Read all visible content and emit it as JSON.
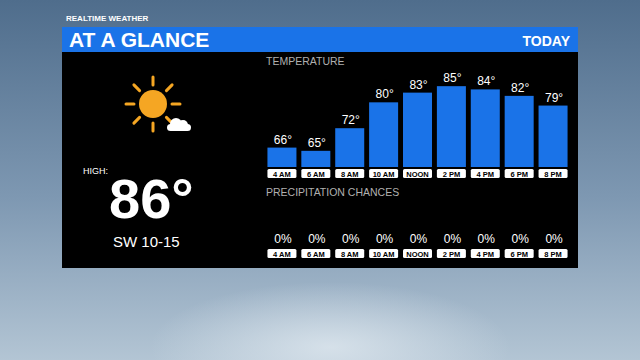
{
  "header": {
    "brand": "REALTIME WEATHER",
    "title": "AT A GLANCE",
    "period": "TODAY"
  },
  "summary": {
    "high_label": "HIGH:",
    "high": "86°",
    "wind": "SW 10-15"
  },
  "chart_data": [
    {
      "type": "bar",
      "title": "TEMPERATURE",
      "categories": [
        "4 AM",
        "6 AM",
        "8 AM",
        "10 AM",
        "NOON",
        "2 PM",
        "4 PM",
        "6 PM",
        "8 PM"
      ],
      "values": [
        66,
        65,
        72,
        80,
        83,
        85,
        84,
        82,
        79
      ],
      "value_labels": [
        "66°",
        "65°",
        "72°",
        "80°",
        "83°",
        "85°",
        "84°",
        "82°",
        "79°"
      ],
      "color": "#1a73e8",
      "ylim": [
        60,
        90
      ],
      "data_labels": true,
      "tick_labels": "x"
    },
    {
      "type": "bar",
      "title": "PRECIPITATION CHANCES",
      "categories": [
        "4 AM",
        "6 AM",
        "8 AM",
        "10 AM",
        "NOON",
        "2 PM",
        "4 PM",
        "6 PM",
        "8 PM"
      ],
      "values": [
        0,
        0,
        0,
        0,
        0,
        0,
        0,
        0,
        0
      ],
      "value_labels": [
        "0%",
        "0%",
        "0%",
        "0%",
        "0%",
        "0%",
        "0%",
        "0%",
        "0%"
      ],
      "color": "#1a73e8",
      "ylim": [
        0,
        100
      ],
      "data_labels": true,
      "tick_labels": "x"
    }
  ]
}
